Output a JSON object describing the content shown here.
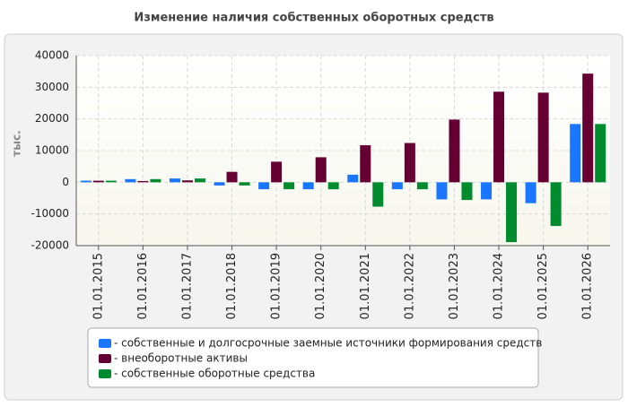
{
  "chart_data": {
    "type": "bar",
    "title": "Изменение наличия собственных оборотных средств",
    "y_label": "тыс.",
    "categories": [
      "01.01.2015",
      "01.01.2016",
      "01.01.2017",
      "01.01.2018",
      "01.01.2019",
      "01.01.2020",
      "01.01.2021",
      "01.01.2022",
      "01.01.2023",
      "01.01.2024",
      "01.01.2025",
      "01.01.2026"
    ],
    "series": [
      {
        "name": "- собственные и долгосрочные заемные источники формирования средств",
        "color": "#1a75ff",
        "values": [
          500,
          1000,
          1200,
          -1000,
          -2200,
          -2200,
          2400,
          -2200,
          -5400,
          -5400,
          -6600,
          18400
        ]
      },
      {
        "name": "- внеоборотные активы",
        "color": "#660033",
        "values": [
          500,
          400,
          600,
          3300,
          6500,
          7900,
          11700,
          12400,
          19800,
          28600,
          28300,
          34300
        ]
      },
      {
        "name": "- собственные оборотные средства",
        "color": "#008c2e",
        "values": [
          500,
          1000,
          1200,
          -1000,
          -2200,
          -2200,
          -7700,
          -2200,
          -5600,
          -18900,
          -13800,
          18400
        ]
      }
    ],
    "ylim": [
      -20000,
      40000
    ],
    "yticks": [
      -20000,
      -10000,
      0,
      10000,
      20000,
      30000,
      40000
    ],
    "grid": true
  }
}
